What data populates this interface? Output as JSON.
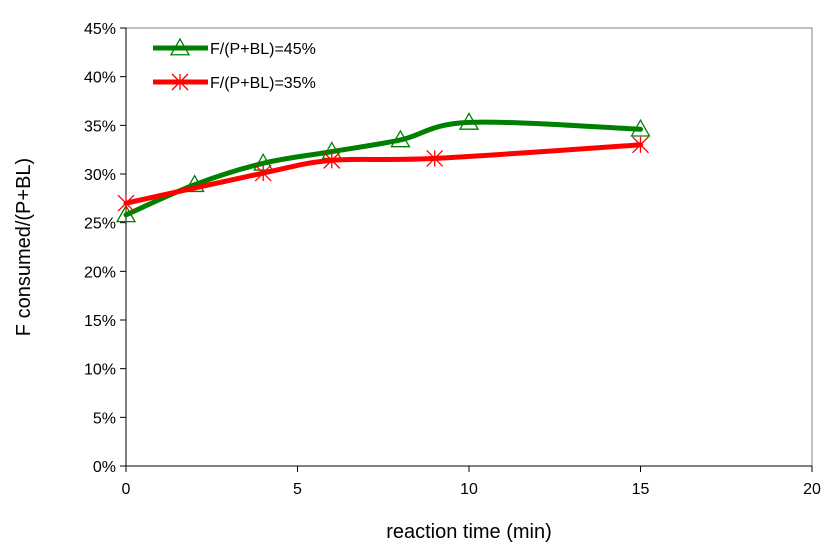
{
  "chart_data": {
    "type": "line",
    "title": "",
    "xlabel": "reaction time (min)",
    "ylabel": "F consumed/(P+BL)",
    "xlim": [
      0,
      20
    ],
    "ylim": [
      0,
      45
    ],
    "x_ticks": [
      0,
      5,
      10,
      15,
      20
    ],
    "x_tick_labels": [
      "0",
      "5",
      "10",
      "15",
      "20"
    ],
    "y_ticks": [
      0,
      5,
      10,
      15,
      20,
      25,
      30,
      35,
      40,
      45
    ],
    "y_tick_labels": [
      "0%",
      "5%",
      "10%",
      "15%",
      "20%",
      "25%",
      "30%",
      "35%",
      "40%",
      "45%"
    ],
    "grid": false,
    "legend_position": "top-left",
    "series": [
      {
        "name": "F/(P+BL)=45%",
        "color": "#008000",
        "marker": "triangle",
        "x": [
          0,
          2,
          4,
          6,
          8,
          10,
          15
        ],
        "y": [
          25.8,
          28.9,
          31.1,
          32.3,
          33.5,
          35.3,
          34.6
        ]
      },
      {
        "name": "F/(P+BL)=35%",
        "color": "#ff0000",
        "marker": "asterisk",
        "x": [
          0,
          4,
          6,
          9,
          15
        ],
        "y": [
          27.0,
          30.1,
          31.4,
          31.6,
          33.0
        ]
      }
    ]
  }
}
